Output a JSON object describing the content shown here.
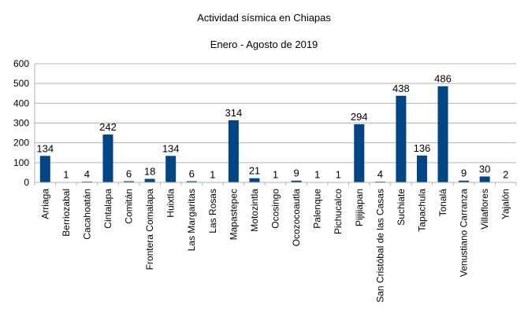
{
  "chart_data": {
    "type": "bar",
    "title": "Actividad sísmica en Chiapas",
    "subtitle": "Enero - Agosto de 2019",
    "xlabel": "",
    "ylabel": "",
    "ylim": [
      0,
      600
    ],
    "yticks": [
      "0",
      "100",
      "200",
      "300",
      "400",
      "500",
      "600"
    ],
    "grid": true,
    "legend": "none",
    "bar_color": "#004586",
    "categories": [
      "Arriaga",
      "Berriozabal",
      "Cacahoatán",
      "Cintalapa",
      "Comitán",
      "Frontera Comalapa",
      "Huixtla",
      "Las Margaritas",
      "Las Rosas",
      "Mapastepec",
      "Motozintla",
      "Ocosingo",
      "Ocozocoautla",
      "Palenque",
      "Pichucalco",
      "Pijijiapan",
      "San Cristóbal de las Casas",
      "Suchiate",
      "Tapachula",
      "Tonalá",
      "Venustiano Carranza",
      "Villaflores",
      "Yajalón"
    ],
    "values": [
      134,
      1,
      4,
      242,
      6,
      18,
      134,
      6,
      1,
      314,
      21,
      1,
      9,
      1,
      1,
      294,
      4,
      438,
      136,
      486,
      9,
      30,
      2
    ]
  }
}
